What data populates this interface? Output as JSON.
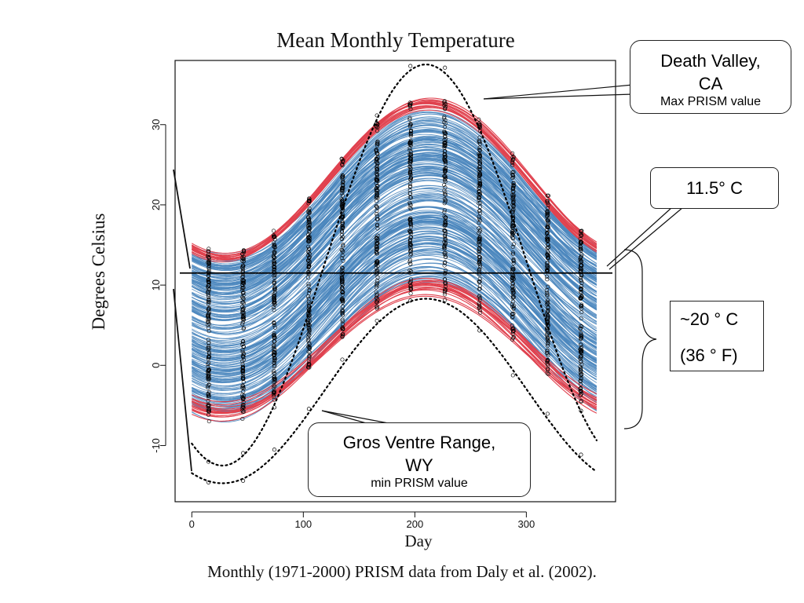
{
  "chart_data": {
    "type": "line",
    "title": "Mean Monthly Temperature",
    "xlabel": "Day",
    "ylabel": "Degrees Celsius",
    "xlim": [
      -15,
      380
    ],
    "ylim": [
      -17,
      38
    ],
    "x_ticks": [
      0,
      100,
      200,
      300
    ],
    "y_ticks": [
      -10,
      0,
      10,
      20,
      30
    ],
    "grid": false,
    "legend": "none",
    "sample_days": [
      15,
      46,
      74,
      105,
      135,
      166,
      196,
      227,
      258,
      288,
      319,
      349
    ],
    "reference_line": {
      "value": 11.5,
      "color": "#000000"
    },
    "series": [
      {
        "role": "envelope_max",
        "style": "dotted",
        "color": "#000000",
        "mean": 12.5,
        "amplitude": 25.0,
        "peak_day": 210
      },
      {
        "role": "envelope_min",
        "style": "dotted",
        "color": "#000000",
        "mean": -3.2,
        "amplitude": 11.5,
        "peak_day": 210
      },
      {
        "role": "warm_sites",
        "color": "#e0424f",
        "count": 16,
        "mean_range": [
          22.5,
          23.5
        ],
        "amplitude_range": [
          9.3,
          10.0
        ],
        "peak_day": 212
      },
      {
        "role": "cold_sites",
        "color": "#e0424f",
        "count": 16,
        "mean_range": [
          1.3,
          3.0
        ],
        "amplitude_range": [
          7.3,
          8.5
        ],
        "peak_day": 212
      },
      {
        "role": "typical_sites",
        "color": "#4a86bd",
        "count": 230,
        "mean_range": [
          2.5,
          22.0
        ],
        "amplitude_range": [
          7.5,
          10.3
        ],
        "peak_day": 212
      }
    ],
    "colors": {
      "red": "#e0424f",
      "blue": "#4a86bd",
      "black": "#000000"
    }
  },
  "callouts": {
    "death_valley": {
      "line1": "Death Valley,",
      "line2": "CA",
      "sub": "Max PRISM value"
    },
    "avg": {
      "text": "11.5° C"
    },
    "gros_ventre": {
      "line1": "Gros Ventre Range,",
      "line2": "WY",
      "sub": "min PRISM value"
    },
    "range": {
      "line1": "~20 ° C",
      "line2": "(36 ° F)"
    }
  },
  "caption": "Monthly (1971-2000) PRISM data from Daly et al. (2002)."
}
